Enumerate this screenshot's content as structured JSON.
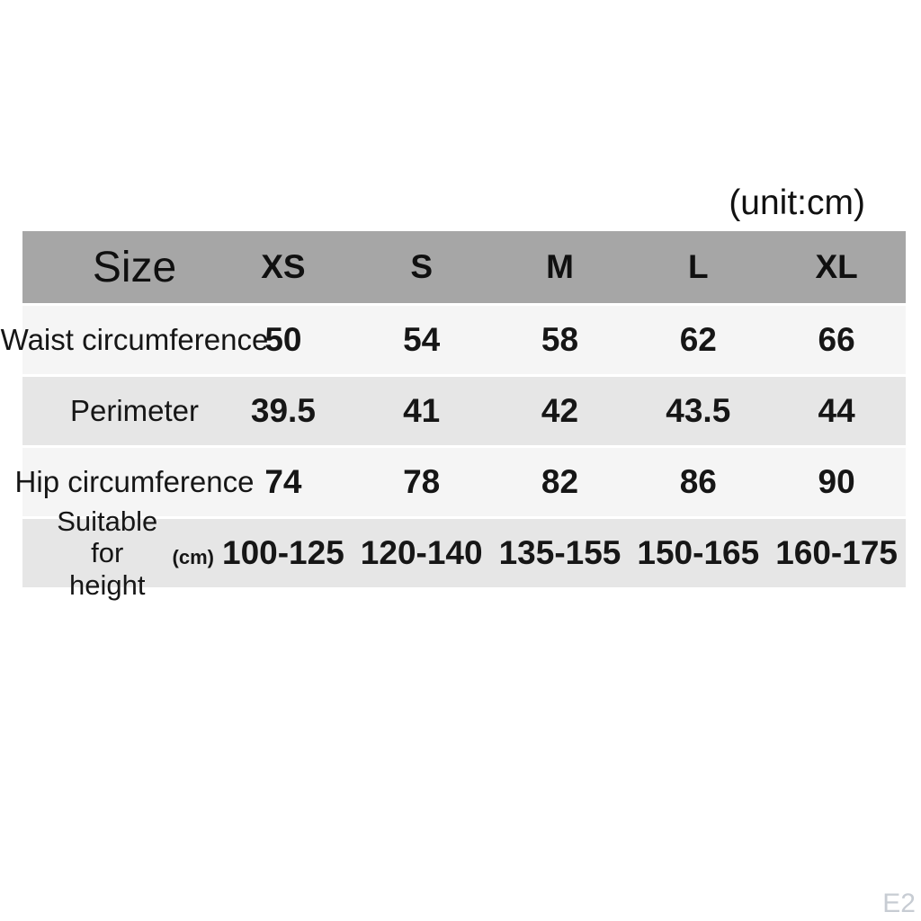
{
  "page": {
    "unit_label": "(unit:cm)",
    "watermark": "E2"
  },
  "colors": {
    "header_bg": "#a6a6a6",
    "row_light": "#f5f5f5",
    "row_dark": "#e6e6e6",
    "text": "#161616",
    "watermark": "#c7ccd3"
  },
  "chart_data": {
    "type": "table",
    "title": "(unit:cm)",
    "unit": "cm",
    "columns": [
      "Size",
      "XS",
      "S",
      "M",
      "L",
      "XL"
    ],
    "rows": [
      {
        "label": "Waist circumference",
        "values": [
          "50",
          "54",
          "58",
          "62",
          "66"
        ]
      },
      {
        "label": "Perimeter",
        "values": [
          "39.5",
          "41",
          "42",
          "43.5",
          "44"
        ]
      },
      {
        "label": "Hip circumference",
        "values": [
          "74",
          "78",
          "82",
          "86",
          "90"
        ]
      },
      {
        "label": "Suitable for height",
        "label_note": "(cm)",
        "values": [
          "100-125",
          "120-140",
          "135-155",
          "150-165",
          "160-175"
        ]
      }
    ]
  }
}
